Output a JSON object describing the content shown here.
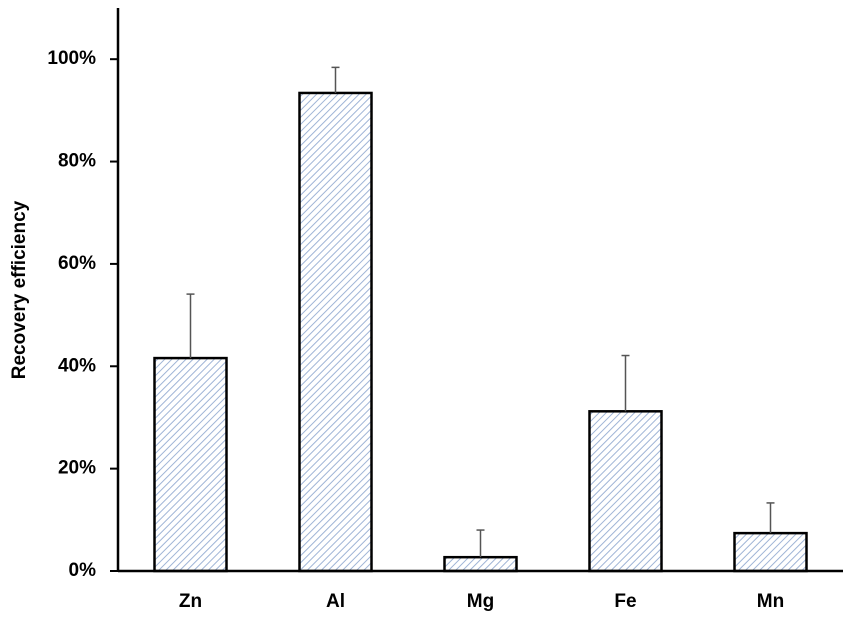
{
  "chart_data": {
    "type": "bar",
    "y_label": "Recovery efficiency",
    "categories": [
      "Zn",
      "Al",
      "Mg",
      "Fe",
      "Mn"
    ],
    "values": [
      41.6,
      93.4,
      2.7,
      31.2,
      7.4
    ],
    "errors": [
      12.5,
      5.0,
      5.3,
      10.9,
      5.9
    ],
    "color": "#9fb4d6",
    "ylim": [
      0,
      110
    ],
    "yticks": [
      {
        "value": 0,
        "label": "0%"
      },
      {
        "value": 20,
        "label": "20%"
      },
      {
        "value": 40,
        "label": "40%"
      },
      {
        "value": 60,
        "label": "60%"
      },
      {
        "value": 80,
        "label": "80%"
      },
      {
        "value": 100,
        "label": "100%"
      }
    ],
    "grid": false
  }
}
